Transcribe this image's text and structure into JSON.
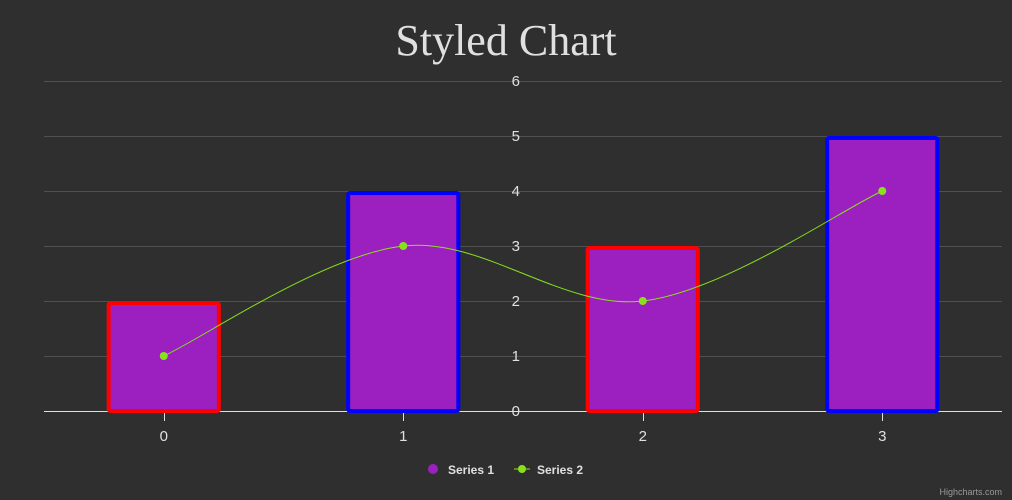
{
  "chart_data": {
    "type": "bar",
    "title": "Styled Chart",
    "categories": [
      "0",
      "1",
      "2",
      "3"
    ],
    "ylim": [
      0,
      6
    ],
    "yticks": [
      0,
      1,
      2,
      3,
      4,
      5,
      6
    ],
    "grid": true,
    "legend_position": "bottom-center",
    "series": [
      {
        "name": "Series 1",
        "type": "column",
        "values": [
          2,
          4,
          3,
          5
        ],
        "color": "#9c1fbf",
        "border_colors": [
          "#ff0000",
          "#0000ff",
          "#ff0000",
          "#0000ff"
        ]
      },
      {
        "name": "Series 2",
        "type": "spline",
        "values": [
          1,
          3,
          2,
          4
        ],
        "color": "#88e21b"
      }
    ]
  },
  "colors": {
    "background": "#2f2f2f",
    "grid": "#505050",
    "axis": "#e0e0e0",
    "text": "#e0e0e0",
    "credits": "#9a9a9a"
  },
  "credits": "Highcharts.com"
}
